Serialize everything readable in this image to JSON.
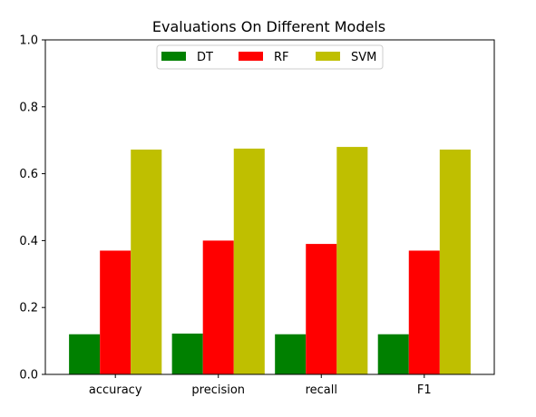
{
  "chart_data": {
    "type": "bar",
    "title": "Evaluations On Different Models",
    "xlabel": "",
    "ylabel": "",
    "categories": [
      "accuracy",
      "precision",
      "recall",
      "F1"
    ],
    "series": [
      {
        "name": "DT",
        "color": "#008000",
        "values": [
          0.12,
          0.122,
          0.12,
          0.12
        ]
      },
      {
        "name": "RF",
        "color": "#ff0000",
        "values": [
          0.37,
          0.4,
          0.39,
          0.37
        ]
      },
      {
        "name": "SVM",
        "color": "#bfbf00",
        "values": [
          0.672,
          0.675,
          0.68,
          0.672
        ]
      }
    ],
    "ylim": [
      0.0,
      1.0
    ],
    "yticks": [
      "0.0",
      "0.2",
      "0.4",
      "0.6",
      "0.8",
      "1.0"
    ],
    "grid": false,
    "legend": {
      "position": "top-center",
      "columns": 3
    }
  }
}
